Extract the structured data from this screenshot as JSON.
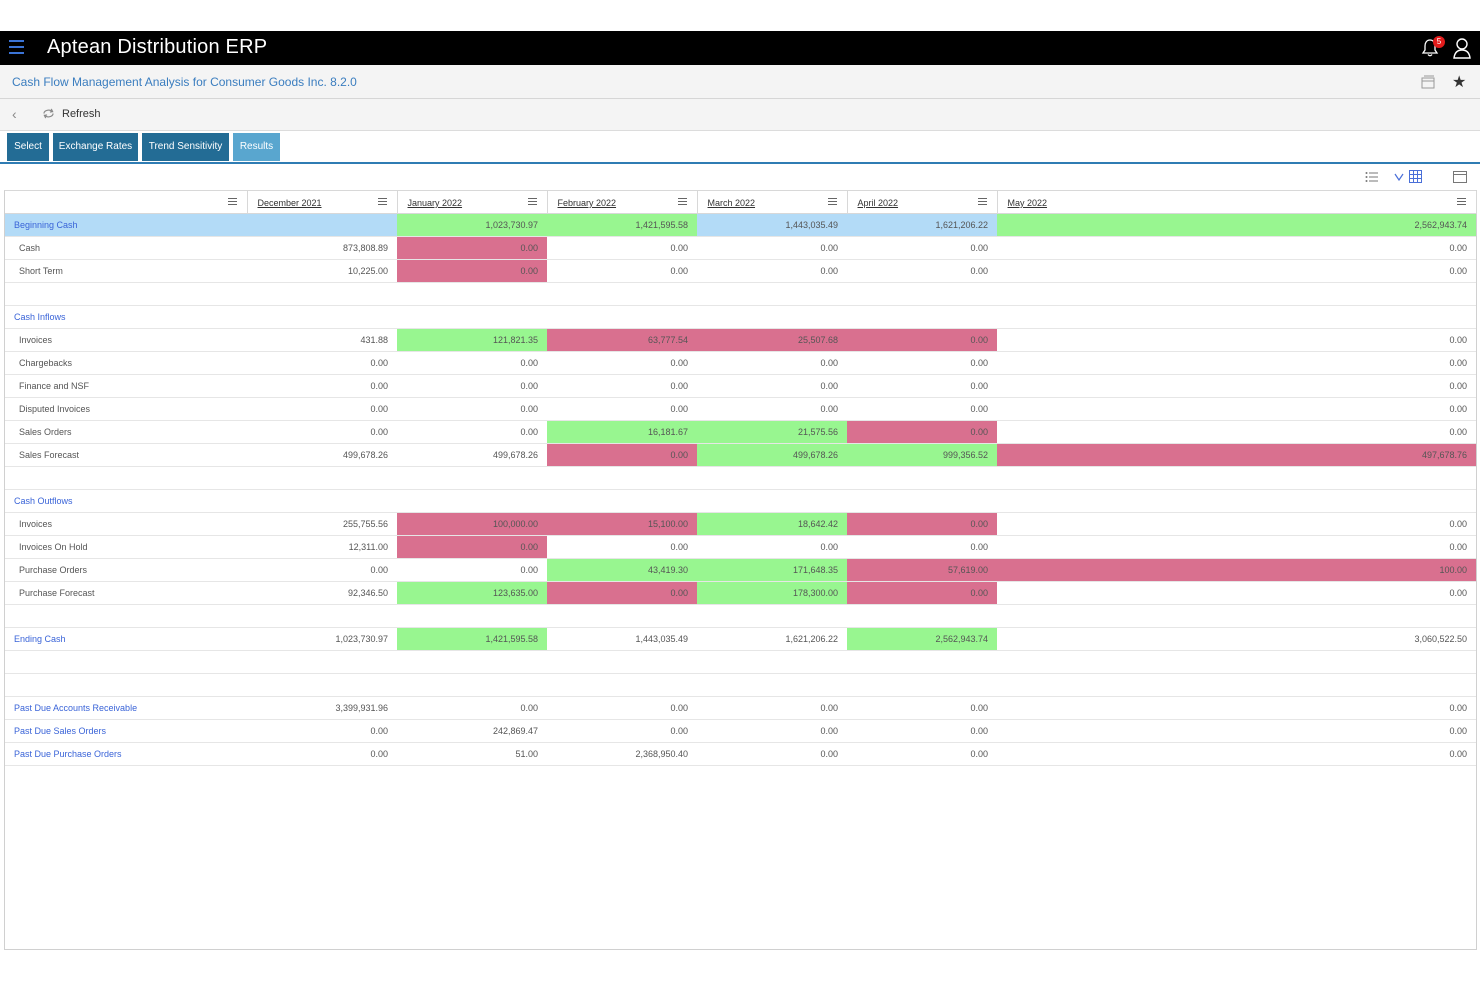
{
  "app": {
    "title": "Aptean Distribution ERP",
    "notification_count": "5"
  },
  "page": {
    "title": "Cash Flow Management Analysis for Consumer Goods Inc. 8.2.0"
  },
  "toolbar": {
    "refresh_label": "Refresh"
  },
  "tabs": [
    {
      "label": "Select"
    },
    {
      "label": "Exchange Rates"
    },
    {
      "label": "Trend Sensitivity"
    },
    {
      "label": "Results",
      "active": true
    }
  ],
  "columns": [
    "December 2021",
    "January 2022",
    "February 2022",
    "March 2022",
    "April 2022",
    "May 2022"
  ],
  "colors": {
    "increase": "#98f690",
    "decrease": "#d9708f",
    "highlight": "#b3dbf7",
    "accent": "#236c95"
  },
  "rows": [
    {
      "label": "Beginning Cash",
      "kind": "section",
      "values": [
        "",
        "1,023,730.97",
        "1,421,595.58",
        "1,443,035.49",
        "1,621,206.22",
        "2,562,943.74"
      ],
      "colors": [
        "b",
        "g",
        "g",
        "b",
        "b",
        "g"
      ]
    },
    {
      "label": "Cash",
      "kind": "child",
      "values": [
        "873,808.89",
        "0.00",
        "0.00",
        "0.00",
        "0.00",
        "0.00"
      ],
      "colors": [
        "",
        "r",
        "",
        "",
        "",
        ""
      ]
    },
    {
      "label": "Short Term",
      "kind": "child",
      "values": [
        "10,225.00",
        "0.00",
        "0.00",
        "0.00",
        "0.00",
        "0.00"
      ],
      "colors": [
        "",
        "r",
        "",
        "",
        "",
        ""
      ]
    },
    {
      "kind": "blank"
    },
    {
      "label": "Cash Inflows",
      "kind": "section",
      "values": [
        "",
        "",
        "",
        "",
        "",
        ""
      ],
      "colors": [
        "",
        "",
        "",
        "",
        "",
        ""
      ]
    },
    {
      "label": "Invoices",
      "kind": "child",
      "values": [
        "431.88",
        "121,821.35",
        "63,777.54",
        "25,507.68",
        "0.00",
        "0.00"
      ],
      "colors": [
        "",
        "g",
        "r",
        "r",
        "r",
        ""
      ]
    },
    {
      "label": "Chargebacks",
      "kind": "child",
      "values": [
        "0.00",
        "0.00",
        "0.00",
        "0.00",
        "0.00",
        "0.00"
      ],
      "colors": [
        "",
        "",
        "",
        "",
        "",
        ""
      ]
    },
    {
      "label": "Finance and NSF",
      "kind": "child",
      "values": [
        "0.00",
        "0.00",
        "0.00",
        "0.00",
        "0.00",
        "0.00"
      ],
      "colors": [
        "",
        "",
        "",
        "",
        "",
        ""
      ]
    },
    {
      "label": "Disputed Invoices",
      "kind": "child",
      "values": [
        "0.00",
        "0.00",
        "0.00",
        "0.00",
        "0.00",
        "0.00"
      ],
      "colors": [
        "",
        "",
        "",
        "",
        "",
        ""
      ]
    },
    {
      "label": "Sales Orders",
      "kind": "child",
      "values": [
        "0.00",
        "0.00",
        "16,181.67",
        "21,575.56",
        "0.00",
        "0.00"
      ],
      "colors": [
        "",
        "",
        "g",
        "g",
        "r",
        ""
      ]
    },
    {
      "label": "Sales Forecast",
      "kind": "child",
      "values": [
        "499,678.26",
        "499,678.26",
        "0.00",
        "499,678.26",
        "999,356.52",
        "497,678.76"
      ],
      "colors": [
        "",
        "",
        "r",
        "g",
        "g",
        "r"
      ]
    },
    {
      "kind": "blank"
    },
    {
      "label": "Cash Outflows",
      "kind": "section",
      "values": [
        "",
        "",
        "",
        "",
        "",
        ""
      ],
      "colors": [
        "",
        "",
        "",
        "",
        "",
        ""
      ]
    },
    {
      "label": "Invoices",
      "kind": "child",
      "values": [
        "255,755.56",
        "100,000.00",
        "15,100.00",
        "18,642.42",
        "0.00",
        "0.00"
      ],
      "colors": [
        "",
        "r",
        "r",
        "g",
        "r",
        ""
      ]
    },
    {
      "label": "Invoices On Hold",
      "kind": "child",
      "values": [
        "12,311.00",
        "0.00",
        "0.00",
        "0.00",
        "0.00",
        "0.00"
      ],
      "colors": [
        "",
        "r",
        "",
        "",
        "",
        ""
      ]
    },
    {
      "label": "Purchase Orders",
      "kind": "child",
      "values": [
        "0.00",
        "0.00",
        "43,419.30",
        "171,648.35",
        "57,619.00",
        "100.00"
      ],
      "colors": [
        "",
        "",
        "g",
        "g",
        "r",
        "r"
      ]
    },
    {
      "label": "Purchase Forecast",
      "kind": "child",
      "values": [
        "92,346.50",
        "123,635.00",
        "0.00",
        "178,300.00",
        "0.00",
        "0.00"
      ],
      "colors": [
        "",
        "g",
        "r",
        "g",
        "r",
        ""
      ]
    },
    {
      "kind": "blank"
    },
    {
      "label": "Ending Cash",
      "kind": "section",
      "values": [
        "1,023,730.97",
        "1,421,595.58",
        "1,443,035.49",
        "1,621,206.22",
        "2,562,943.74",
        "3,060,522.50"
      ],
      "colors": [
        "",
        "g",
        "",
        "",
        "g",
        ""
      ]
    },
    {
      "kind": "blank"
    },
    {
      "kind": "blank"
    },
    {
      "label": "Past Due Accounts Receivable",
      "kind": "section",
      "values": [
        "3,399,931.96",
        "0.00",
        "0.00",
        "0.00",
        "0.00",
        "0.00"
      ],
      "colors": [
        "",
        "",
        "",
        "",
        "",
        ""
      ]
    },
    {
      "label": "Past Due Sales Orders",
      "kind": "section",
      "values": [
        "0.00",
        "242,869.47",
        "0.00",
        "0.00",
        "0.00",
        "0.00"
      ],
      "colors": [
        "",
        "",
        "",
        "",
        "",
        ""
      ]
    },
    {
      "label": "Past Due Purchase Orders",
      "kind": "section",
      "values": [
        "0.00",
        "51.00",
        "2,368,950.40",
        "0.00",
        "0.00",
        "0.00"
      ],
      "colors": [
        "",
        "",
        "",
        "",
        "",
        ""
      ]
    }
  ]
}
